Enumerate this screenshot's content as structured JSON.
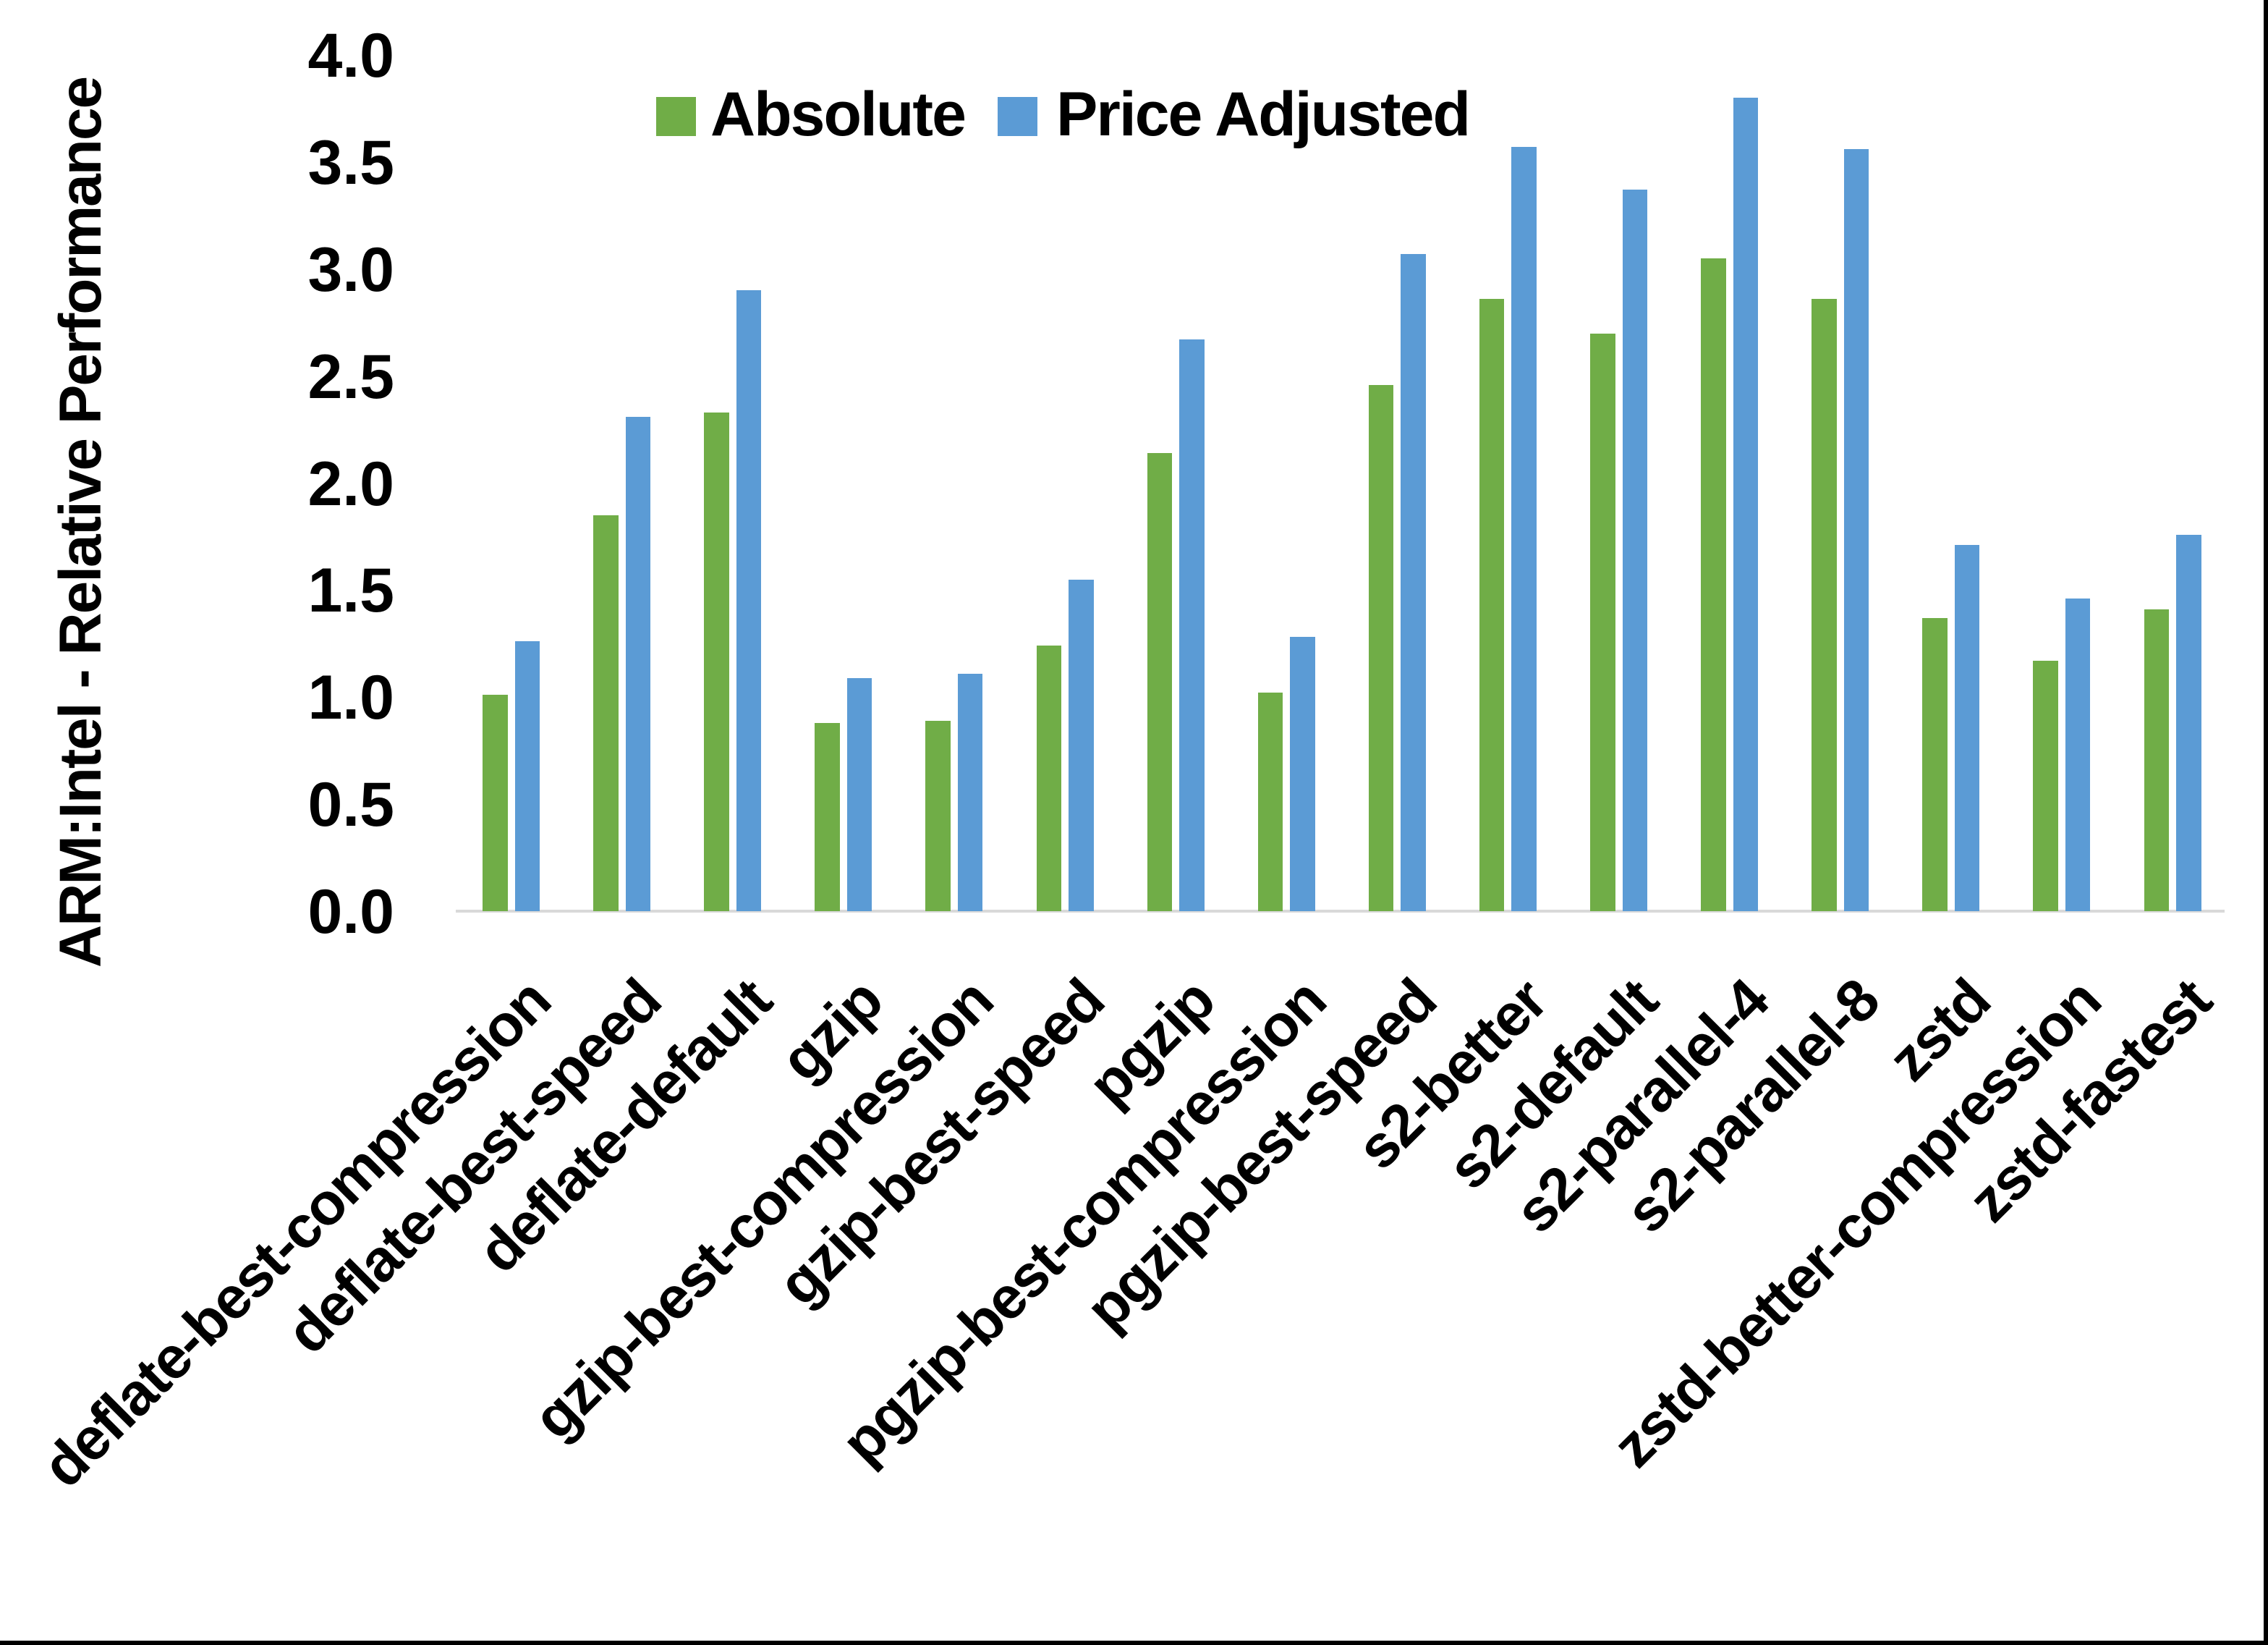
{
  "chart_data": {
    "type": "bar",
    "title": "",
    "xlabel": "",
    "ylabel": "ARM:Intel - Relative Performance",
    "ylim": [
      0.0,
      4.0
    ],
    "ytick_step": 0.5,
    "yticks": [
      "4.0",
      "3.5",
      "3.0",
      "2.5",
      "2.0",
      "1.5",
      "1.0",
      "0.5",
      "0.0"
    ],
    "grid": false,
    "legend_position": "top-center",
    "categories": [
      "deflate-best-compression",
      "deflate-best-speed",
      "deflate-default",
      "gzip",
      "gzip-best-compression",
      "gzip-best-speed",
      "pgzip",
      "pgzip-best-compression",
      "pgzip-best-speed",
      "s2-better",
      "s2-default",
      "s2-parallel-4",
      "s2-parallel-8",
      "zstd",
      "zstd-better-compression",
      "zstd-fastest"
    ],
    "series": [
      {
        "name": "Absolute",
        "color": "#70AD47",
        "values": [
          1.01,
          1.85,
          2.33,
          0.88,
          0.89,
          1.24,
          2.14,
          1.02,
          2.46,
          2.86,
          2.7,
          3.05,
          2.86,
          1.37,
          1.17,
          1.41
        ]
      },
      {
        "name": "Price Adjusted",
        "color": "#5B9BD5",
        "values": [
          1.26,
          2.31,
          2.9,
          1.09,
          1.11,
          1.55,
          2.67,
          1.28,
          3.07,
          3.57,
          3.37,
          3.8,
          3.56,
          1.71,
          1.46,
          1.76
        ]
      }
    ]
  },
  "colors": {
    "background": "#FFFFFF",
    "text": "#000000",
    "axis_line": "#D9D9D9",
    "frame": "#000000"
  }
}
